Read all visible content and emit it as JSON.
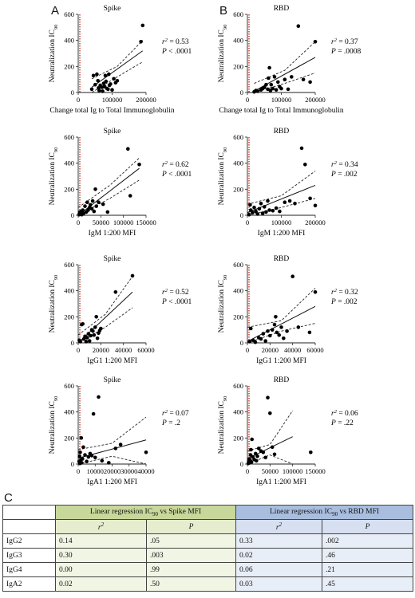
{
  "panel_letters": {
    "a": "A",
    "b": "B",
    "c": "C"
  },
  "colors": {
    "reference_line": "#c0392b",
    "points": "#000000",
    "spike_header": "#c8d79a",
    "rbd_header": "#a9bedf"
  },
  "chart_data": [
    {
      "type": "scatter",
      "title": "Spike",
      "xlabel": "Change total Ig to Total Immunoglobulin",
      "ylabel": "Neutralization IC90",
      "xlim": [
        0,
        200000
      ],
      "ylim": [
        0,
        600
      ],
      "xticks": [
        "0",
        "100000",
        "200000"
      ],
      "yticks": [
        "0",
        "200",
        "400",
        "600"
      ],
      "stat_r2": "= 0.53",
      "stat_p": "< .0001",
      "points": [
        [
          40000,
          25
        ],
        [
          45000,
          130
        ],
        [
          50000,
          60
        ],
        [
          55000,
          140
        ],
        [
          58000,
          90
        ],
        [
          60000,
          35
        ],
        [
          62000,
          15
        ],
        [
          65000,
          55
        ],
        [
          70000,
          40
        ],
        [
          72000,
          10
        ],
        [
          75000,
          70
        ],
        [
          78000,
          45
        ],
        [
          80000,
          130
        ],
        [
          82000,
          85
        ],
        [
          85000,
          30
        ],
        [
          88000,
          25
        ],
        [
          90000,
          140
        ],
        [
          92000,
          55
        ],
        [
          95000,
          65
        ],
        [
          100000,
          20
        ],
        [
          105000,
          105
        ],
        [
          110000,
          75
        ],
        [
          115000,
          90
        ],
        [
          185000,
          390
        ],
        [
          190000,
          515
        ]
      ],
      "fit": {
        "x0": 40000,
        "y0": 40,
        "x1": 190000,
        "y1": 320,
        "ci_upper": [
          [
            40000,
            105
          ],
          [
            115000,
            200
          ],
          [
            190000,
            400
          ]
        ],
        "ci_lower": [
          [
            40000,
            0
          ],
          [
            115000,
            120
          ],
          [
            190000,
            235
          ]
        ]
      }
    },
    {
      "type": "scatter",
      "title": "RBD",
      "xlabel": "Change total Ig to Total Immunoglobulin",
      "ylabel": "Neutralization IC90",
      "xlim": [
        0,
        200000
      ],
      "ylim": [
        0,
        600
      ],
      "xticks": [
        "0",
        "100000",
        "200000"
      ],
      "yticks": [
        "0",
        "200",
        "400",
        "600"
      ],
      "stat_r2": "= 0.37",
      "stat_p": "= .0008",
      "points": [
        [
          20000,
          5
        ],
        [
          25000,
          15
        ],
        [
          30000,
          10
        ],
        [
          40000,
          20
        ],
        [
          45000,
          30
        ],
        [
          50000,
          40
        ],
        [
          55000,
          60
        ],
        [
          60000,
          25
        ],
        [
          62000,
          110
        ],
        [
          65000,
          190
        ],
        [
          68000,
          15
        ],
        [
          70000,
          60
        ],
        [
          75000,
          30
        ],
        [
          80000,
          120
        ],
        [
          85000,
          20
        ],
        [
          90000,
          80
        ],
        [
          95000,
          45
        ],
        [
          100000,
          30
        ],
        [
          110000,
          100
        ],
        [
          120000,
          25
        ],
        [
          130000,
          120
        ],
        [
          150000,
          510
        ],
        [
          165000,
          100
        ],
        [
          185000,
          80
        ],
        [
          200000,
          390
        ]
      ],
      "fit": {
        "x0": 20000,
        "y0": 10,
        "x1": 200000,
        "y1": 270,
        "ci_upper": [
          [
            20000,
            70
          ],
          [
            110000,
            170
          ],
          [
            200000,
            390
          ]
        ],
        "ci_lower": [
          [
            20000,
            0
          ],
          [
            110000,
            70
          ],
          [
            200000,
            150
          ]
        ]
      }
    },
    {
      "type": "scatter",
      "title": "Spike",
      "xlabel": "IgM 1:200 MFI",
      "ylabel": "Neutralization IC90",
      "xlim": [
        0,
        150000
      ],
      "ylim": [
        0,
        600
      ],
      "xticks": [
        "0",
        "50000",
        "100000",
        "150000"
      ],
      "yticks": [
        "0",
        "200",
        "400",
        "600"
      ],
      "stat_r2": "= 0.62",
      "stat_p": "< .0001",
      "points": [
        [
          2000,
          5
        ],
        [
          3000,
          15
        ],
        [
          4000,
          25
        ],
        [
          5000,
          10
        ],
        [
          6000,
          20
        ],
        [
          7000,
          30
        ],
        [
          8000,
          5
        ],
        [
          10000,
          40
        ],
        [
          12000,
          15
        ],
        [
          15000,
          70
        ],
        [
          18000,
          25
        ],
        [
          20000,
          100
        ],
        [
          22000,
          40
        ],
        [
          25000,
          60
        ],
        [
          27000,
          80
        ],
        [
          30000,
          50
        ],
        [
          32000,
          110
        ],
        [
          35000,
          30
        ],
        [
          38000,
          200
        ],
        [
          40000,
          70
        ],
        [
          45000,
          100
        ],
        [
          55000,
          85
        ],
        [
          65000,
          25
        ],
        [
          110000,
          510
        ],
        [
          115000,
          150
        ],
        [
          135000,
          390
        ]
      ],
      "fit": {
        "x0": 0,
        "y0": 0,
        "x1": 135000,
        "y1": 360,
        "ci_upper": [
          [
            0,
            60
          ],
          [
            70000,
            230
          ],
          [
            135000,
            440
          ]
        ],
        "ci_lower": [
          [
            0,
            0
          ],
          [
            70000,
            130
          ],
          [
            135000,
            270
          ]
        ]
      }
    },
    {
      "type": "scatter",
      "title": "RBD",
      "xlabel": "IgM 1:200 MFI",
      "ylabel": "Neutralization IC90",
      "xlim": [
        0,
        200000
      ],
      "ylim": [
        0,
        600
      ],
      "xticks": [
        "0",
        "100000",
        "200000"
      ],
      "yticks": [
        "0",
        "200",
        "400",
        "600"
      ],
      "stat_r2": "= 0.34",
      "stat_p": "= .002",
      "points": [
        [
          5000,
          5
        ],
        [
          8000,
          80
        ],
        [
          10000,
          40
        ],
        [
          15000,
          20
        ],
        [
          20000,
          60
        ],
        [
          25000,
          30
        ],
        [
          30000,
          10
        ],
        [
          35000,
          50
        ],
        [
          40000,
          90
        ],
        [
          45000,
          15
        ],
        [
          50000,
          65
        ],
        [
          55000,
          25
        ],
        [
          60000,
          110
        ],
        [
          65000,
          40
        ],
        [
          75000,
          35
        ],
        [
          85000,
          55
        ],
        [
          95000,
          30
        ],
        [
          110000,
          100
        ],
        [
          125000,
          110
        ],
        [
          140000,
          90
        ],
        [
          160000,
          515
        ],
        [
          170000,
          390
        ],
        [
          185000,
          130
        ],
        [
          200000,
          75
        ]
      ],
      "fit": {
        "x0": 0,
        "y0": 20,
        "x1": 200000,
        "y1": 230,
        "ci_upper": [
          [
            0,
            85
          ],
          [
            100000,
            150
          ],
          [
            200000,
            340
          ]
        ],
        "ci_lower": [
          [
            0,
            0
          ],
          [
            100000,
            60
          ],
          [
            200000,
            130
          ]
        ]
      }
    },
    {
      "type": "scatter",
      "title": "Spike",
      "xlabel": "IgG1 1:200 MFI",
      "ylabel": "Neutralization IC90",
      "xlim": [
        0,
        60000
      ],
      "ylim": [
        0,
        600
      ],
      "xticks": [
        "0",
        "20000",
        "40000",
        "60000"
      ],
      "yticks": [
        "0",
        "200",
        "400",
        "600"
      ],
      "stat_r2": "= 0.52",
      "stat_p": "< .0001",
      "points": [
        [
          1000,
          20
        ],
        [
          2000,
          10
        ],
        [
          3000,
          140
        ],
        [
          4000,
          145
        ],
        [
          5000,
          30
        ],
        [
          6000,
          50
        ],
        [
          7000,
          10
        ],
        [
          8000,
          40
        ],
        [
          9000,
          70
        ],
        [
          10000,
          15
        ],
        [
          11000,
          55
        ],
        [
          12000,
          100
        ],
        [
          13000,
          90
        ],
        [
          14000,
          60
        ],
        [
          15000,
          120
        ],
        [
          16000,
          200
        ],
        [
          17000,
          35
        ],
        [
          18000,
          75
        ],
        [
          19000,
          95
        ],
        [
          20000,
          110
        ],
        [
          33000,
          390
        ],
        [
          48000,
          515
        ]
      ],
      "fit": {
        "x0": 0,
        "y0": 0,
        "x1": 48000,
        "y1": 390,
        "ci_upper": [
          [
            0,
            60
          ],
          [
            24000,
            220
          ],
          [
            48000,
            510
          ]
        ],
        "ci_lower": [
          [
            0,
            0
          ],
          [
            24000,
            120
          ],
          [
            48000,
            270
          ]
        ]
      }
    },
    {
      "type": "scatter",
      "title": "RBD",
      "xlabel": "IgG1 1:200 MFI",
      "ylabel": "Neutralization IC90",
      "xlim": [
        0,
        60000
      ],
      "ylim": [
        0,
        600
      ],
      "xticks": [
        "0",
        "20000",
        "40000",
        "60000"
      ],
      "yticks": [
        "0",
        "200",
        "400",
        "600"
      ],
      "stat_r2": "= 0.32",
      "stat_p": "= .002",
      "points": [
        [
          2000,
          10
        ],
        [
          3000,
          110
        ],
        [
          5000,
          20
        ],
        [
          7000,
          5
        ],
        [
          10000,
          40
        ],
        [
          12000,
          30
        ],
        [
          14000,
          70
        ],
        [
          16000,
          15
        ],
        [
          18000,
          90
        ],
        [
          20000,
          55
        ],
        [
          22000,
          100
        ],
        [
          24000,
          140
        ],
        [
          25000,
          200
        ],
        [
          26000,
          80
        ],
        [
          28000,
          60
        ],
        [
          30000,
          120
        ],
        [
          32000,
          35
        ],
        [
          35000,
          90
        ],
        [
          40000,
          510
        ],
        [
          45000,
          120
        ],
        [
          55000,
          80
        ],
        [
          60000,
          390
        ]
      ],
      "fit": {
        "x0": 0,
        "y0": 10,
        "x1": 60000,
        "y1": 280,
        "ci_upper": [
          [
            0,
            120
          ],
          [
            30000,
            170
          ],
          [
            60000,
            420
          ]
        ],
        "ci_lower": [
          [
            0,
            0
          ],
          [
            30000,
            90
          ],
          [
            60000,
            150
          ]
        ]
      }
    },
    {
      "type": "scatter",
      "title": "Spike",
      "xlabel": "IgA1 1:200 MFI",
      "ylabel": "Neutralization IC90",
      "xlim": [
        0,
        40000
      ],
      "ylim": [
        0,
        600
      ],
      "xticks": [
        "0",
        "10000",
        "20000",
        "30000",
        "40000"
      ],
      "yticks": [
        "0",
        "200",
        "400",
        "600"
      ],
      "stat_r2": "= 0.07",
      "stat_p": "= .2",
      "points": [
        [
          500,
          20
        ],
        [
          800,
          60
        ],
        [
          1000,
          5
        ],
        [
          1200,
          90
        ],
        [
          1500,
          30
        ],
        [
          1800,
          200
        ],
        [
          2000,
          10
        ],
        [
          2500,
          40
        ],
        [
          3000,
          130
        ],
        [
          4000,
          70
        ],
        [
          5000,
          20
        ],
        [
          6000,
          55
        ],
        [
          7000,
          80
        ],
        [
          8000,
          65
        ],
        [
          9000,
          385
        ],
        [
          10000,
          50
        ],
        [
          12000,
          515
        ],
        [
          14000,
          25
        ],
        [
          18000,
          10
        ],
        [
          22000,
          120
        ],
        [
          25000,
          150
        ],
        [
          40000,
          90
        ]
      ],
      "fit": {
        "x0": 0,
        "y0": 45,
        "x1": 40000,
        "y1": 185,
        "ci_upper": [
          [
            0,
            110
          ],
          [
            20000,
            160
          ],
          [
            40000,
            360
          ]
        ],
        "ci_lower": [
          [
            0,
            0
          ],
          [
            20000,
            60
          ],
          [
            40000,
            0
          ]
        ]
      }
    },
    {
      "type": "scatter",
      "title": "RBD",
      "xlabel": "IgA1 1:200 MFI",
      "ylabel": "Neutralization IC90",
      "xlim": [
        0,
        150000
      ],
      "ylim": [
        0,
        600
      ],
      "xticks": [
        "0",
        "50000",
        "100000",
        "150000"
      ],
      "yticks": [
        "0",
        "200",
        "400",
        "600"
      ],
      "stat_r2": "= 0.06",
      "stat_p": "= .22",
      "points": [
        [
          2000,
          5
        ],
        [
          3000,
          20
        ],
        [
          4000,
          40
        ],
        [
          5000,
          10
        ],
        [
          6000,
          30
        ],
        [
          7000,
          70
        ],
        [
          8000,
          110
        ],
        [
          9000,
          15
        ],
        [
          10000,
          190
        ],
        [
          12000,
          55
        ],
        [
          15000,
          35
        ],
        [
          18000,
          80
        ],
        [
          20000,
          25
        ],
        [
          22000,
          60
        ],
        [
          25000,
          120
        ],
        [
          30000,
          100
        ],
        [
          35000,
          90
        ],
        [
          40000,
          50
        ],
        [
          45000,
          510
        ],
        [
          50000,
          390
        ],
        [
          55000,
          130
        ],
        [
          60000,
          75
        ],
        [
          140000,
          90
        ]
      ],
      "fit": {
        "x0": 0,
        "y0": 40,
        "x1": 100000,
        "y1": 210,
        "ci_upper": [
          [
            0,
            100
          ],
          [
            50000,
            150
          ],
          [
            100000,
            410
          ]
        ],
        "ci_lower": [
          [
            0,
            0
          ],
          [
            50000,
            70
          ],
          [
            100000,
            0
          ]
        ]
      }
    }
  ],
  "table": {
    "spike_header": "Linear regression IC90 vs Spike MFI",
    "rbd_header": "Linear regression IC90 vs RBD MFI",
    "col_r2": "r2",
    "col_p": "P",
    "rows": [
      {
        "label": "IgG2",
        "spike_r2": "0.14",
        "spike_p": ".05",
        "rbd_r2": "0.33",
        "rbd_p": ".002"
      },
      {
        "label": "IgG3",
        "spike_r2": "0.30",
        "spike_p": ".003",
        "rbd_r2": "0.02",
        "rbd_p": ".46"
      },
      {
        "label": "IgG4",
        "spike_r2": "0.00",
        "spike_p": ".99",
        "rbd_r2": "0.06",
        "rbd_p": ".21"
      },
      {
        "label": "IgA2",
        "spike_r2": "0.02",
        "spike_p": ".50",
        "rbd_r2": "0.03",
        "rbd_p": ".45"
      }
    ]
  }
}
